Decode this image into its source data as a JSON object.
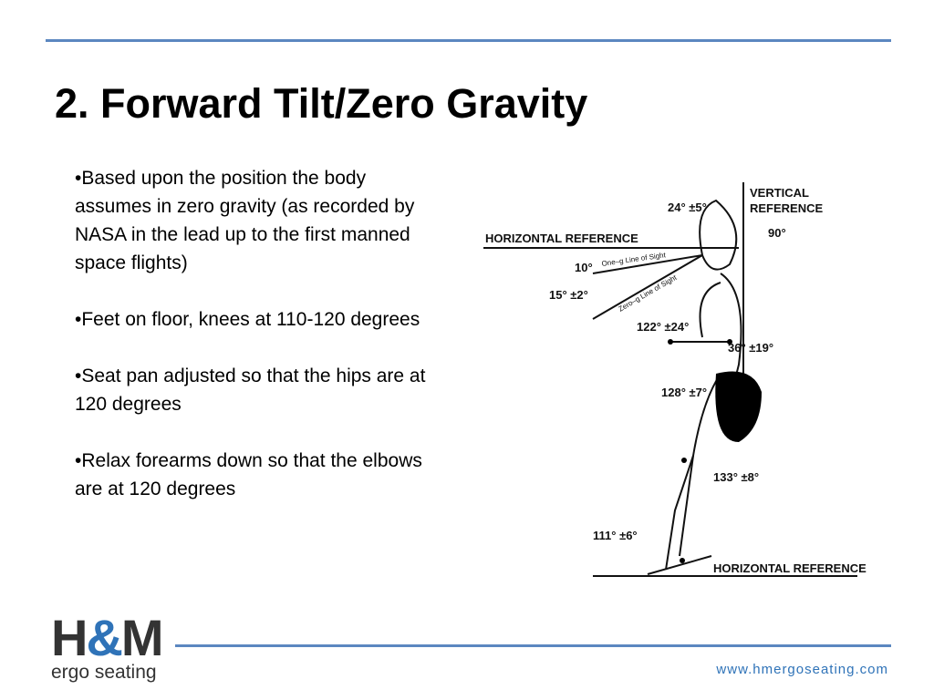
{
  "header": {
    "title": "2.  Forward Tilt/Zero Gravity"
  },
  "bullets": [
    "•Based upon the position the body assumes in zero gravity (as recorded by NASA in the lead up to the first manned space flights)",
    "•Feet on floor, knees at 110-120 degrees",
    "•Seat pan adjusted so that the hips are at 120 degrees",
    "•Relax forearms down so that the elbows are at 120 degrees"
  ],
  "figure": {
    "labels": {
      "vertical_reference": [
        "VERTICAL",
        "REFERENCE"
      ],
      "horizontal_reference_top": "HORIZONTAL REFERENCE",
      "neck": "24° ±5°",
      "head": "90°",
      "one_g_angle": "10°",
      "zero_g_angle": "15° ±2°",
      "one_g_line": "One–g Line of Sight",
      "zero_g_line": "Zero–g Line of Sight",
      "elbow": "122° ±24°",
      "shoulder": "36° ±19°",
      "hip": "128° ±7°",
      "knee": "133° ±8°",
      "ankle": "111° ±6°",
      "horizontal_reference_bottom": "HORIZONTAL REFERENCE"
    }
  },
  "footer": {
    "logo": {
      "brand_left": "H",
      "brand_amp": "&",
      "brand_right": "M",
      "tagline": "ergo seating"
    },
    "url": "www.hmergoseating.com"
  }
}
